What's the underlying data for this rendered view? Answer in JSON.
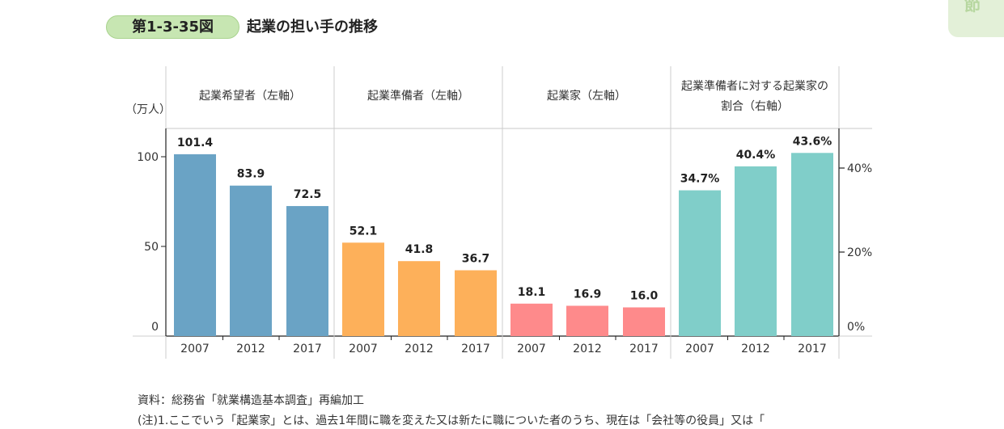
{
  "header": {
    "figure_number": "第1-3-35図",
    "title": "起業の担い手の推移",
    "corner_tab": "節"
  },
  "footer": {
    "source": "資料：総務省「就業構造基本調査」再編加工",
    "note": "(注)1.ここでいう「起業家」とは、過去1年間に職を変えた又は新たに職についた者のうち、現在は「会社等の役員」又は「"
  },
  "chart_data": {
    "type": "bar",
    "left_axis_unit": "（万人）",
    "left_ticks": [
      "0",
      "50",
      "100"
    ],
    "right_ticks": [
      "0%",
      "20%",
      "40%"
    ],
    "ylim_left": [
      0,
      117
    ],
    "ylim_right": [
      0,
      47.5
    ],
    "colors": {
      "entrepreneur_hopefuls": "#6aa3c5",
      "preparers": "#fdb05a",
      "entrepreneurs": "#fe8a8b",
      "ratio": "#80cec9"
    },
    "groups": [
      {
        "header": [
          "起業希望者（左軸）"
        ],
        "axis": "left",
        "color_key": "entrepreneur_hopefuls",
        "categories": [
          "2007",
          "2012",
          "2017"
        ],
        "values": [
          101.4,
          83.9,
          72.5
        ],
        "labels": [
          "101.4",
          "83.9",
          "72.5"
        ]
      },
      {
        "header": [
          "起業準備者（左軸）"
        ],
        "axis": "left",
        "color_key": "preparers",
        "categories": [
          "2007",
          "2012",
          "2017"
        ],
        "values": [
          52.1,
          41.8,
          36.7
        ],
        "labels": [
          "52.1",
          "41.8",
          "36.7"
        ]
      },
      {
        "header": [
          "起業家（左軸）"
        ],
        "axis": "left",
        "color_key": "entrepreneurs",
        "categories": [
          "2007",
          "2012",
          "2017"
        ],
        "values": [
          18.1,
          16.9,
          16.0
        ],
        "labels": [
          "18.1",
          "16.9",
          "16.0"
        ]
      },
      {
        "header": [
          "起業準備者に対する起業家の",
          "割合（右軸）"
        ],
        "axis": "right",
        "color_key": "ratio",
        "categories": [
          "2007",
          "2012",
          "2017"
        ],
        "values": [
          34.7,
          40.4,
          43.6
        ],
        "labels": [
          "34.7%",
          "40.4%",
          "43.6%"
        ]
      }
    ]
  }
}
